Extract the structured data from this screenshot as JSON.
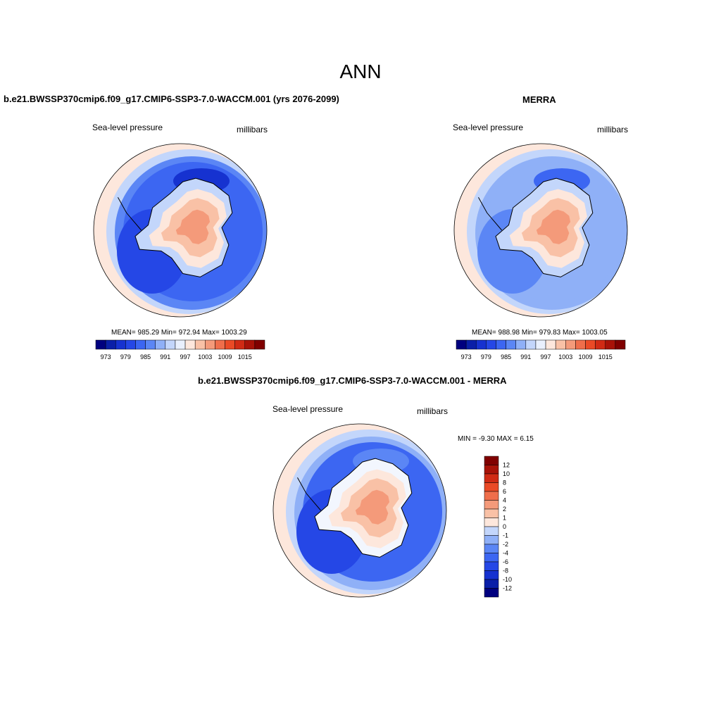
{
  "page": {
    "title": "ANN"
  },
  "colors": {
    "abs_scale": [
      "#00007f",
      "#0a1fa8",
      "#1632d0",
      "#2547e6",
      "#3c66f2",
      "#5b86f5",
      "#8fb0f7",
      "#c3d6fb",
      "#e9f0fd",
      "#fde7dc",
      "#f9c1a6",
      "#f49a7a",
      "#ef6e4b",
      "#ea4a26",
      "#d02a14",
      "#a81208",
      "#800000"
    ],
    "diff_scale": [
      "#00007f",
      "#0a1fa8",
      "#1632d0",
      "#2547e6",
      "#3c66f2",
      "#5b86f5",
      "#8fb0f7",
      "#c3d6fb",
      "#f2f6fe",
      "#fde7dc",
      "#f9c1a6",
      "#f49a7a",
      "#ef6e4b",
      "#ea4a26",
      "#d02a14",
      "#a81208",
      "#800000"
    ],
    "continent_outline": "#000000"
  },
  "chart_data": [
    {
      "type": "heatmap",
      "title": "b.e21.BWSSP370cmip6.f09_g17.CMIP6-SSP3-7.0-WACCM.001 (yrs 2076-2099)",
      "left_label": "Sea-level pressure",
      "right_label": "millibars",
      "stats": "MEAN= 985.29  Min= 972.94  Max= 1003.29",
      "mean": 985.29,
      "min": 972.94,
      "max": 1003.29,
      "colorbar_ticks": [
        "973",
        "979",
        "985",
        "991",
        "997",
        "1003",
        "1009",
        "1015"
      ],
      "ocean_level": 4,
      "ring_levels": [
        3,
        2,
        5,
        7,
        9
      ],
      "continent_levels": [
        7,
        9,
        10,
        11
      ]
    },
    {
      "type": "heatmap",
      "title": "MERRA",
      "left_label": "Sea-level pressure",
      "right_label": "millibars",
      "stats": "MEAN= 988.98  Min= 979.83  Max= 1003.05",
      "mean": 988.98,
      "min": 979.83,
      "max": 1003.05,
      "colorbar_ticks": [
        "973",
        "979",
        "985",
        "991",
        "997",
        "1003",
        "1009",
        "1015"
      ],
      "ocean_level": 6,
      "ring_levels": [
        5,
        4,
        6,
        7,
        9
      ],
      "continent_levels": [
        7,
        9,
        10,
        11
      ]
    },
    {
      "type": "heatmap",
      "title": "b.e21.BWSSP370cmip6.f09_g17.CMIP6-SSP3-7.0-WACCM.001 - MERRA",
      "left_label": "Sea-level pressure",
      "right_label": "millibars",
      "stats": "MIN =  -9.30 MAX =   6.15",
      "min": -9.3,
      "max": 6.15,
      "colorbar_ticks": [
        "12",
        "10",
        "8",
        "6",
        "4",
        "2",
        "1",
        "0",
        "-1",
        "-2",
        "-4",
        "-6",
        "-8",
        "-10",
        "-12"
      ],
      "ocean_level": 4,
      "ring_levels": [
        3,
        5,
        6,
        7,
        9
      ],
      "continent_levels": [
        8,
        9,
        10,
        11
      ]
    }
  ]
}
